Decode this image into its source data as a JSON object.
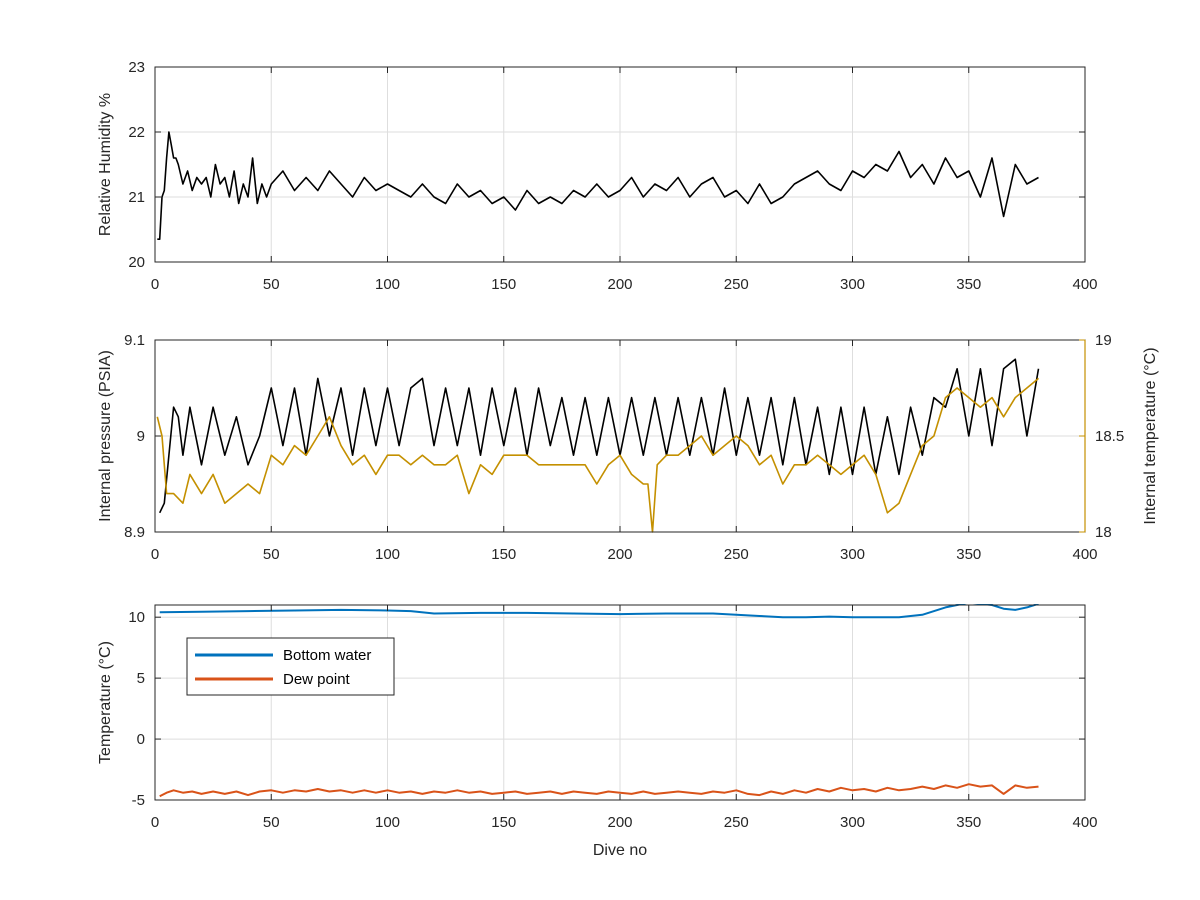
{
  "chart_data": [
    {
      "type": "line",
      "xlabel": "",
      "ylabel": "Relative Humidity %",
      "xlim": [
        0,
        400
      ],
      "ylim": [
        20,
        23
      ],
      "xticks": [
        0,
        50,
        100,
        150,
        200,
        250,
        300,
        350,
        400
      ],
      "yticks": [
        20,
        21,
        22,
        23
      ],
      "grid": true,
      "series": [
        {
          "color": "#000000",
          "x": [
            1,
            2,
            3,
            4,
            5,
            6,
            7,
            8,
            9,
            10,
            12,
            14,
            16,
            18,
            20,
            22,
            24,
            26,
            28,
            30,
            32,
            34,
            36,
            38,
            40,
            42,
            44,
            46,
            48,
            50,
            55,
            60,
            65,
            70,
            75,
            80,
            85,
            90,
            95,
            100,
            105,
            110,
            115,
            120,
            125,
            130,
            135,
            140,
            145,
            150,
            155,
            160,
            165,
            170,
            175,
            180,
            185,
            190,
            195,
            200,
            205,
            210,
            215,
            220,
            225,
            230,
            235,
            240,
            245,
            250,
            255,
            260,
            265,
            270,
            275,
            280,
            285,
            290,
            295,
            300,
            305,
            310,
            315,
            320,
            325,
            330,
            335,
            340,
            345,
            350,
            355,
            360,
            365,
            370,
            375,
            380
          ],
          "y": [
            20.35,
            20.35,
            21.0,
            21.1,
            21.6,
            22.0,
            21.8,
            21.6,
            21.6,
            21.5,
            21.2,
            21.4,
            21.1,
            21.3,
            21.2,
            21.3,
            21.0,
            21.5,
            21.2,
            21.3,
            21.0,
            21.4,
            20.9,
            21.2,
            21.0,
            21.6,
            20.9,
            21.2,
            21.0,
            21.2,
            21.4,
            21.1,
            21.3,
            21.1,
            21.4,
            21.2,
            21.0,
            21.3,
            21.1,
            21.2,
            21.1,
            21.0,
            21.2,
            21.0,
            20.9,
            21.2,
            21.0,
            21.1,
            20.9,
            21.0,
            20.8,
            21.1,
            20.9,
            21.0,
            20.9,
            21.1,
            21.0,
            21.2,
            21.0,
            21.1,
            21.3,
            21.0,
            21.2,
            21.1,
            21.3,
            21.0,
            21.2,
            21.3,
            21.0,
            21.1,
            20.9,
            21.2,
            20.9,
            21.0,
            21.2,
            21.3,
            21.4,
            21.2,
            21.1,
            21.4,
            21.3,
            21.5,
            21.4,
            21.7,
            21.3,
            21.5,
            21.2,
            21.6,
            21.3,
            21.4,
            21.0,
            21.6,
            20.7,
            21.5,
            21.2,
            21.3
          ]
        }
      ]
    },
    {
      "type": "line",
      "xlabel": "",
      "ylabel": "Internal pressure (PSIA)",
      "y2label": "Internal temperature (°C)",
      "xlim": [
        0,
        400
      ],
      "ylim": [
        8.9,
        9.1
      ],
      "y2lim": [
        18,
        19
      ],
      "xticks": [
        0,
        50,
        100,
        150,
        200,
        250,
        300,
        350,
        400
      ],
      "yticks": [
        8.9,
        9,
        9.1
      ],
      "y2ticks": [
        18,
        18.5,
        19
      ],
      "grid": true,
      "series": [
        {
          "axis": "left",
          "color": "#000000",
          "x": [
            2,
            4,
            6,
            8,
            10,
            12,
            15,
            20,
            25,
            30,
            35,
            40,
            45,
            50,
            55,
            60,
            65,
            70,
            75,
            80,
            85,
            90,
            95,
            100,
            105,
            110,
            115,
            120,
            125,
            130,
            135,
            140,
            145,
            150,
            155,
            160,
            165,
            170,
            175,
            180,
            185,
            190,
            195,
            200,
            205,
            210,
            215,
            220,
            225,
            230,
            235,
            240,
            245,
            250,
            255,
            260,
            265,
            270,
            275,
            280,
            285,
            290,
            295,
            300,
            305,
            310,
            315,
            320,
            325,
            330,
            335,
            340,
            345,
            350,
            355,
            360,
            365,
            370,
            375,
            380
          ],
          "y": [
            8.92,
            8.93,
            8.98,
            9.03,
            9.02,
            8.98,
            9.03,
            8.97,
            9.03,
            8.98,
            9.02,
            8.97,
            9.0,
            9.05,
            8.99,
            9.05,
            8.98,
            9.06,
            9.0,
            9.05,
            8.98,
            9.05,
            8.99,
            9.05,
            8.99,
            9.05,
            9.06,
            8.99,
            9.05,
            8.99,
            9.05,
            8.98,
            9.05,
            8.99,
            9.05,
            8.98,
            9.05,
            8.99,
            9.04,
            8.98,
            9.04,
            8.98,
            9.04,
            8.98,
            9.04,
            8.98,
            9.04,
            8.98,
            9.04,
            8.98,
            9.04,
            8.98,
            9.05,
            8.98,
            9.04,
            8.98,
            9.04,
            8.97,
            9.04,
            8.97,
            9.03,
            8.96,
            9.03,
            8.96,
            9.03,
            8.96,
            9.02,
            8.96,
            9.03,
            8.98,
            9.04,
            9.03,
            9.07,
            9.0,
            9.07,
            8.99,
            9.07,
            9.08,
            9.0,
            9.07
          ]
        },
        {
          "axis": "right",
          "color": "#c49000",
          "x": [
            1,
            3,
            5,
            8,
            12,
            15,
            20,
            25,
            30,
            35,
            40,
            45,
            50,
            55,
            60,
            65,
            70,
            75,
            80,
            85,
            90,
            95,
            100,
            105,
            110,
            115,
            120,
            125,
            130,
            135,
            140,
            145,
            150,
            155,
            160,
            165,
            170,
            175,
            180,
            185,
            190,
            195,
            200,
            205,
            210,
            212,
            214,
            216,
            220,
            225,
            230,
            235,
            240,
            245,
            250,
            255,
            260,
            265,
            270,
            275,
            280,
            285,
            290,
            295,
            300,
            305,
            310,
            315,
            320,
            325,
            330,
            335,
            340,
            345,
            350,
            355,
            360,
            365,
            370,
            375,
            380
          ],
          "y": [
            18.6,
            18.5,
            18.2,
            18.2,
            18.15,
            18.3,
            18.2,
            18.3,
            18.15,
            18.2,
            18.25,
            18.2,
            18.4,
            18.35,
            18.45,
            18.4,
            18.5,
            18.6,
            18.45,
            18.35,
            18.4,
            18.3,
            18.4,
            18.4,
            18.35,
            18.4,
            18.35,
            18.35,
            18.4,
            18.2,
            18.35,
            18.3,
            18.4,
            18.4,
            18.4,
            18.35,
            18.35,
            18.35,
            18.35,
            18.35,
            18.25,
            18.35,
            18.4,
            18.3,
            18.25,
            18.25,
            18.0,
            18.35,
            18.4,
            18.4,
            18.45,
            18.5,
            18.4,
            18.45,
            18.5,
            18.45,
            18.35,
            18.4,
            18.25,
            18.35,
            18.35,
            18.4,
            18.35,
            18.3,
            18.35,
            18.4,
            18.3,
            18.1,
            18.15,
            18.3,
            18.45,
            18.5,
            18.7,
            18.75,
            18.7,
            18.65,
            18.7,
            18.6,
            18.7,
            18.75,
            18.8
          ]
        }
      ]
    },
    {
      "type": "line",
      "xlabel": "Dive no",
      "ylabel": "Temperature (°C)",
      "xlim": [
        0,
        400
      ],
      "ylim": [
        -5,
        11
      ],
      "xticks": [
        0,
        50,
        100,
        150,
        200,
        250,
        300,
        350,
        400
      ],
      "yticks": [
        -5,
        0,
        5,
        10
      ],
      "grid": true,
      "legend": "top-left",
      "series": [
        {
          "name": "Bottom water",
          "color": "#0072bd",
          "x": [
            2,
            20,
            40,
            60,
            80,
            100,
            110,
            120,
            140,
            160,
            180,
            200,
            220,
            240,
            250,
            260,
            270,
            280,
            290,
            300,
            310,
            320,
            330,
            340,
            345,
            350,
            355,
            360,
            365,
            370,
            375,
            380
          ],
          "y": [
            10.4,
            10.45,
            10.5,
            10.55,
            10.6,
            10.55,
            10.5,
            10.3,
            10.35,
            10.35,
            10.3,
            10.25,
            10.3,
            10.3,
            10.2,
            10.1,
            10.0,
            10.0,
            10.05,
            10.0,
            10.0,
            10.0,
            10.2,
            10.8,
            11.0,
            11.2,
            11.1,
            11.0,
            10.7,
            10.6,
            10.8,
            11.1
          ]
        },
        {
          "name": "Dew point",
          "color": "#d95319",
          "x": [
            2,
            5,
            8,
            12,
            16,
            20,
            25,
            30,
            35,
            40,
            45,
            50,
            55,
            60,
            65,
            70,
            75,
            80,
            85,
            90,
            95,
            100,
            105,
            110,
            115,
            120,
            125,
            130,
            135,
            140,
            145,
            150,
            155,
            160,
            165,
            170,
            175,
            180,
            185,
            190,
            195,
            200,
            205,
            210,
            215,
            220,
            225,
            230,
            235,
            240,
            245,
            250,
            255,
            260,
            265,
            270,
            275,
            280,
            285,
            290,
            295,
            300,
            305,
            310,
            315,
            320,
            325,
            330,
            335,
            340,
            345,
            350,
            355,
            360,
            365,
            370,
            375,
            380
          ],
          "y": [
            -4.7,
            -4.4,
            -4.2,
            -4.4,
            -4.3,
            -4.5,
            -4.3,
            -4.5,
            -4.3,
            -4.6,
            -4.3,
            -4.2,
            -4.4,
            -4.2,
            -4.3,
            -4.1,
            -4.3,
            -4.2,
            -4.4,
            -4.2,
            -4.4,
            -4.2,
            -4.4,
            -4.3,
            -4.5,
            -4.3,
            -4.4,
            -4.2,
            -4.4,
            -4.3,
            -4.5,
            -4.4,
            -4.3,
            -4.5,
            -4.4,
            -4.3,
            -4.5,
            -4.3,
            -4.4,
            -4.5,
            -4.3,
            -4.4,
            -4.5,
            -4.3,
            -4.5,
            -4.4,
            -4.3,
            -4.4,
            -4.5,
            -4.3,
            -4.4,
            -4.2,
            -4.5,
            -4.6,
            -4.3,
            -4.5,
            -4.2,
            -4.4,
            -4.1,
            -4.3,
            -4.0,
            -4.2,
            -4.1,
            -4.3,
            -4.0,
            -4.2,
            -4.1,
            -3.9,
            -4.1,
            -3.8,
            -4.0,
            -3.7,
            -3.9,
            -3.8,
            -4.5,
            -3.8,
            -4.0,
            -3.9
          ]
        }
      ]
    }
  ]
}
